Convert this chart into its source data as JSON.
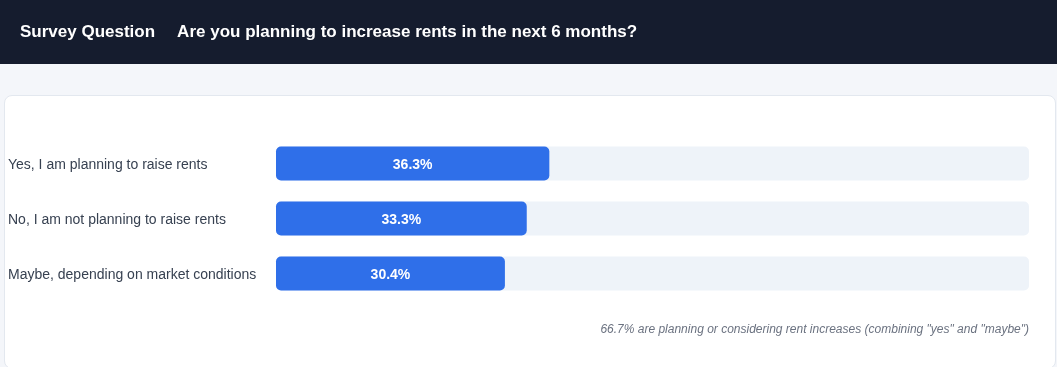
{
  "chart_data": {
    "type": "bar",
    "orientation": "horizontal",
    "title": "Survey Question",
    "subtitle": "Are you planning to increase rents in the next 6 months?",
    "categories": [
      "Yes, I am planning to raise rents",
      "No, I am not planning to raise rents",
      "Maybe, depending on market conditions"
    ],
    "values": [
      36.3,
      33.3,
      30.4
    ],
    "value_labels": [
      "36.3%",
      "33.3%",
      "30.4%"
    ],
    "color": "#2f6fe9",
    "xlim": [
      0,
      100
    ],
    "annotations": [
      "66.7% are planning or considering rent increases (combining \"yes\" and \"maybe\")"
    ]
  }
}
